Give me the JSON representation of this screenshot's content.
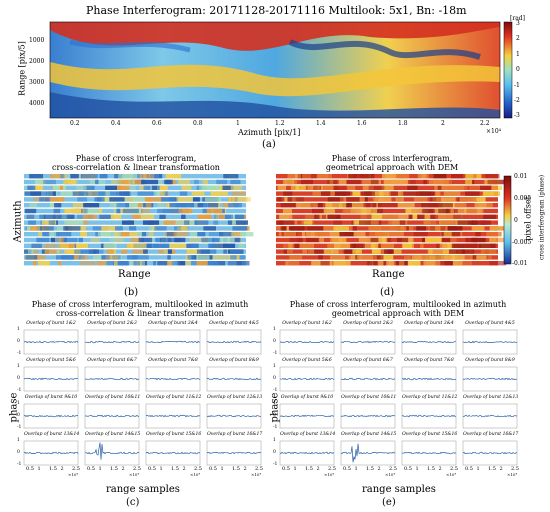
{
  "figure": {
    "panel_a": {
      "title": "Phase Interferogram: 20171128-20171116 Multilook: 5x1, Bn: -18m",
      "ylabel": "Range [pix/5]",
      "xlabel": "Azimuth [pix/1]",
      "x_exponent": "×10⁴",
      "yticks": [
        "1000",
        "2000",
        "3000",
        "4000"
      ],
      "xticks": [
        "0.2",
        "0.4",
        "0.6",
        "0.8",
        "1",
        "1.2",
        "1.4",
        "1.6",
        "1.8",
        "2",
        "2.2"
      ],
      "colorbar_unit": "[rad]",
      "colorbar_ticks": [
        "3",
        "2",
        "1",
        "0",
        "-1",
        "-2",
        "-3"
      ],
      "caption": "(a)"
    },
    "panel_b": {
      "title_line1": "Phase of cross interferogram,",
      "title_line2": "cross-correlation & linear transformation",
      "ylabel": "Azimuth",
      "xlabel": "Range",
      "caption": "(b)"
    },
    "panel_d": {
      "title_line1": "Phase of cross interferogram,",
      "title_line2": "geometrical approach with DEM",
      "xlabel": "Range",
      "colorbar_ticks": [
        "0.01",
        "0.005",
        "0",
        "-0.005",
        "-0.01"
      ],
      "colorbar_label_inner": "pixel offset",
      "colorbar_label_outer": "cross interferogram (phase)",
      "caption": "(d)"
    },
    "panel_c": {
      "title_line1": "Phase of cross interferogram, multilooked in azimuth",
      "title_line2": "cross-correlation & linear transformation",
      "ylabel": "phase",
      "xlabel": "range samples",
      "caption": "(c)"
    },
    "panel_e": {
      "title_line1": "Phase of cross interferogram, multilooked in azimuth",
      "title_line2": "geometrical approach with DEM",
      "ylabel": "phase",
      "xlabel": "range samples",
      "caption": "(e)"
    },
    "small_plots": {
      "titles": [
        "Overlap of burst 1&2",
        "Overlap of burst 2&3",
        "Overlap of burst 3&4",
        "Overlap of burst 4&5",
        "Overlap of burst 5&6",
        "Overlap of burst 6&7",
        "Overlap of burst 7&8",
        "Overlap of burst 8&9",
        "Overlap of burst 9&10",
        "Overlap of burst 10&11",
        "Overlap of burst 11&12",
        "Overlap of burst 12&13",
        "Overlap of burst 13&14",
        "Overlap of burst 14&15",
        "Overlap of burst 15&16",
        "Overlap of burst 16&17"
      ],
      "yticks": [
        "1",
        "0",
        "-1"
      ],
      "xticks": [
        "0.5",
        "1",
        "1.5",
        "2",
        "2.5"
      ],
      "x_exponent": "×10⁴"
    },
    "colors": {
      "line": "#2a5fa8"
    }
  }
}
